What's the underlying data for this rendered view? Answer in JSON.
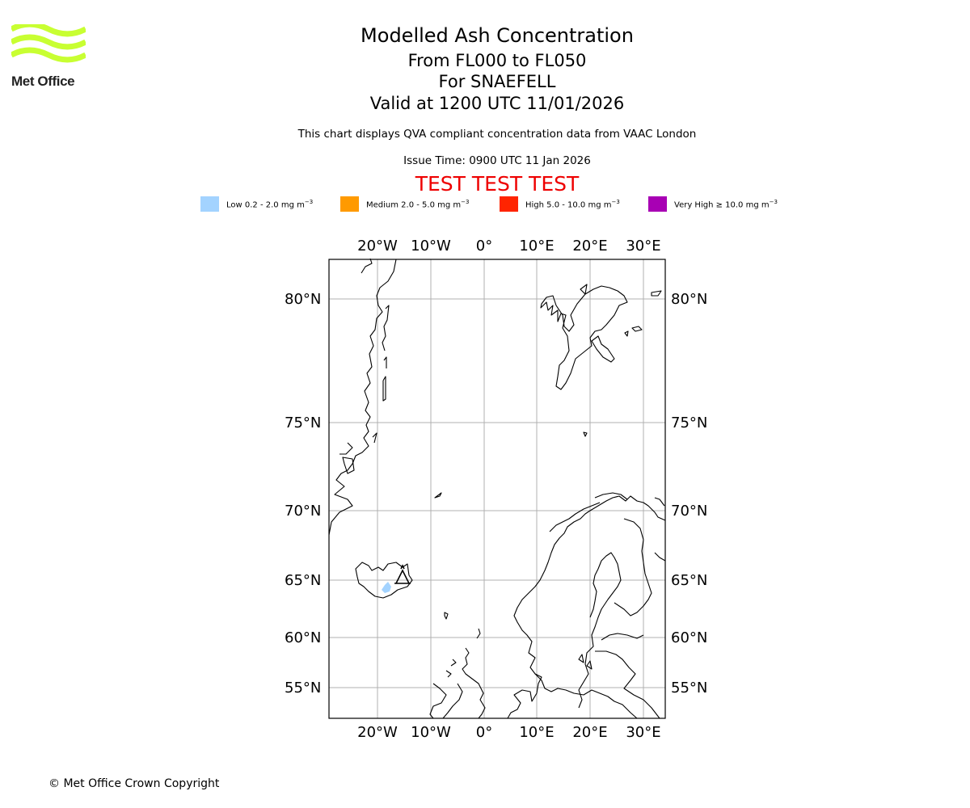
{
  "header": {
    "logo_text": "Met Office",
    "title": "Modelled Ash Concentration",
    "levels": "From FL000 to FL050",
    "volcano": "For SNAEFELL",
    "valid": "Valid at 1200 UTC 11/01/2026",
    "note": "This chart displays QVA compliant concentration data from VAAC London",
    "issue": "Issue Time: 0900 UTC 11 Jan 2026",
    "test_banner": "TEST TEST TEST"
  },
  "legend": [
    {
      "label": "Low 0.2 - 2.0 mg m",
      "color": "#a3d3ff"
    },
    {
      "label": "Medium 2.0 - 5.0 mg m",
      "color": "#ff9a00"
    },
    {
      "label": "High 5.0 - 10.0 mg m",
      "color": "#ff2400"
    },
    {
      "label": "Very High ≥ 10.0 mg m",
      "color": "#a800b4"
    }
  ],
  "legend_unit_exp": "−3",
  "map": {
    "lon_labels": [
      "20°W",
      "10°W",
      "0°",
      "10°E",
      "20°E",
      "30°E"
    ],
    "lat_labels": [
      "80°N",
      "75°N",
      "70°N",
      "65°N",
      "60°N",
      "55°N"
    ],
    "ash_color": "#a3d3ff",
    "logo_color": "#c8ff32"
  },
  "footer": {
    "copyright": "© Met Office Crown Copyright"
  }
}
